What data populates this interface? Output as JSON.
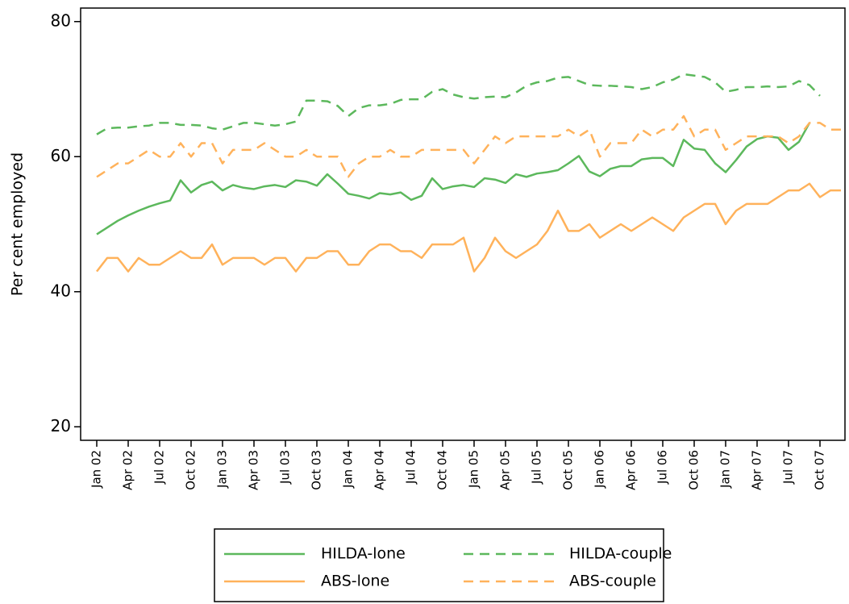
{
  "chart_data": {
    "type": "line",
    "y_label": "Per cent employed",
    "categories": [
      "Jan 02",
      null,
      null,
      "Apr 02",
      null,
      null,
      "Jul 02",
      null,
      null,
      "Oct 02",
      null,
      null,
      "Jan 03",
      null,
      null,
      "Apr 03",
      null,
      null,
      "Jul 03",
      null,
      null,
      "Oct 03",
      null,
      null,
      "Jan 04",
      null,
      null,
      "Apr 04",
      null,
      null,
      "Jul 04",
      null,
      null,
      "Oct 04",
      null,
      null,
      "Jan 05",
      null,
      null,
      "Apr 05",
      null,
      null,
      "Jul 05",
      null,
      null,
      "Oct 05",
      null,
      null,
      "Jan 06",
      null,
      null,
      "Apr 06",
      null,
      null,
      "Jul 06",
      null,
      null,
      "Oct 06",
      null,
      null,
      "Jan 07",
      null,
      null,
      "Apr 07",
      null,
      null,
      "Jul 07",
      null,
      null,
      "Oct 07",
      null,
      null
    ],
    "ylim": [
      18,
      82
    ],
    "yticks": [
      20,
      40,
      60,
      80
    ],
    "grid": false,
    "series": [
      {
        "name": "HILDA-lone",
        "color": "#5cb85c",
        "dashed": false,
        "values": [
          48.5,
          49.5,
          50.5,
          51.3,
          52,
          52.6,
          53.1,
          53.5,
          56.5,
          54.7,
          55.8,
          56.3,
          55,
          55.8,
          55.4,
          55.2,
          55.6,
          55.8,
          55.5,
          56.5,
          56.3,
          55.7,
          57.4,
          56,
          54.5,
          54.2,
          53.8,
          54.6,
          54.4,
          54.7,
          53.6,
          54.2,
          56.8,
          55.2,
          55.6,
          55.8,
          55.5,
          56.8,
          56.6,
          56.1,
          57.4,
          57,
          57.5,
          57.7,
          58,
          59,
          60.1,
          57.8,
          57.1,
          58.2,
          58.6,
          58.6,
          59.6,
          59.8,
          59.8,
          58.6,
          62.5,
          61.2,
          61,
          59,
          57.7,
          59.5,
          61.5,
          62.6,
          63,
          62.8,
          61,
          62.2,
          65,
          null,
          null,
          null
        ]
      },
      {
        "name": "HILDA-couple",
        "color": "#5cb85c",
        "dashed": true,
        "values": [
          63.3,
          64.2,
          64.3,
          64.3,
          64.5,
          64.6,
          65,
          65,
          64.7,
          64.7,
          64.6,
          64.2,
          64,
          64.5,
          65,
          65,
          64.8,
          64.6,
          64.8,
          65.2,
          68.3,
          68.3,
          68.2,
          67.5,
          66,
          67.2,
          67.6,
          67.6,
          67.8,
          68.4,
          68.5,
          68.5,
          69.6,
          70,
          69.2,
          68.8,
          68.6,
          68.8,
          68.9,
          68.8,
          69.5,
          70.5,
          71,
          71.2,
          71.7,
          71.8,
          71.2,
          70.6,
          70.5,
          70.5,
          70.4,
          70.3,
          70,
          70.3,
          71,
          71.4,
          72.2,
          72,
          71.8,
          71,
          69.6,
          69.9,
          70.3,
          70.3,
          70.4,
          70.3,
          70.4,
          71.2,
          70.6,
          69,
          null,
          null
        ]
      },
      {
        "name": "ABS-lone",
        "color": "#ffb25b",
        "dashed": false,
        "values": [
          43,
          45,
          45,
          43,
          45,
          44,
          44,
          45,
          46,
          45,
          45,
          47,
          44,
          45,
          45,
          45,
          44,
          45,
          45,
          43,
          45,
          45,
          46,
          46,
          44,
          44,
          46,
          47,
          47,
          46,
          46,
          45,
          47,
          47,
          47,
          48,
          43,
          45,
          48,
          46,
          45,
          46,
          47,
          49,
          52,
          49,
          49,
          50,
          48,
          49,
          50,
          49,
          50,
          51,
          50,
          49,
          51,
          52,
          53,
          53,
          50,
          52,
          53,
          53,
          53,
          54,
          55,
          55,
          56,
          54,
          55,
          55
        ]
      },
      {
        "name": "ABS-couple",
        "color": "#ffb25b",
        "dashed": true,
        "values": [
          57,
          58,
          59,
          59,
          60,
          61,
          60,
          60,
          62,
          60,
          62,
          62,
          59,
          61,
          61,
          61,
          62,
          61,
          60,
          60,
          61,
          60,
          60,
          60,
          57,
          59,
          60,
          60,
          61,
          60,
          60,
          61,
          61,
          61,
          61,
          61,
          59,
          61,
          63,
          62,
          63,
          63,
          63,
          63,
          63,
          64,
          63,
          64,
          60,
          62,
          62,
          62,
          64,
          63,
          64,
          64,
          66,
          63,
          64,
          64,
          61,
          62,
          63,
          63,
          63,
          63,
          62,
          63,
          65,
          65,
          64,
          64
        ]
      }
    ]
  }
}
